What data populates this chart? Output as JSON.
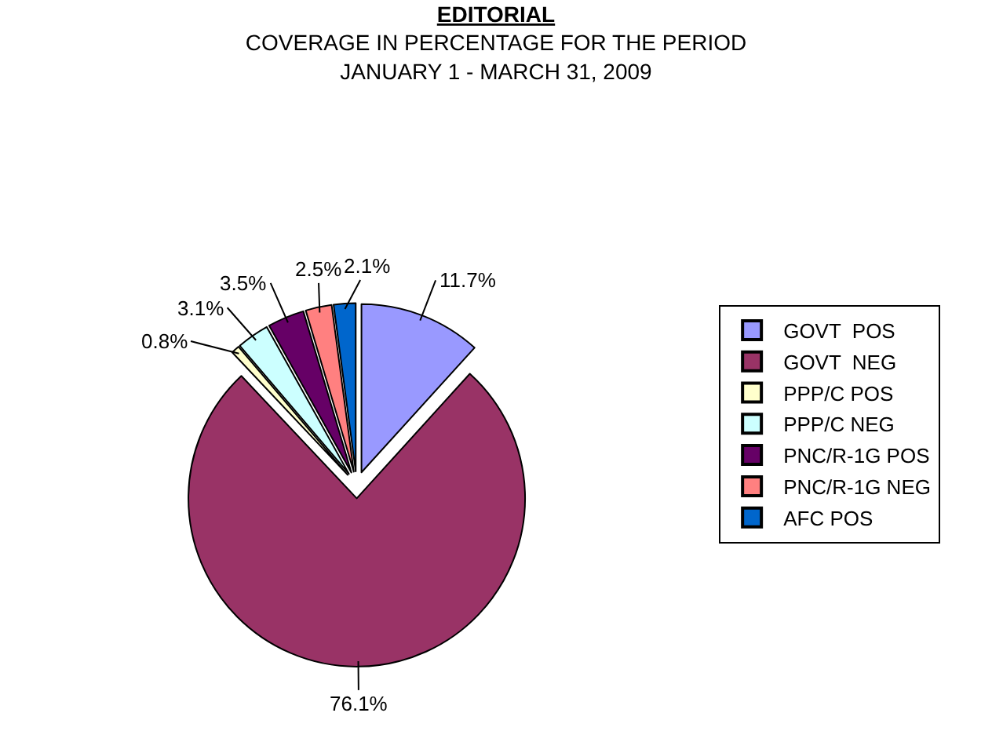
{
  "chart_data": {
    "type": "pie",
    "title": "EDITORIAL",
    "subtitle": "COVERAGE IN PERCENTAGE FOR THE PERIOD\nJANUARY 1 - MARCH 31, 2009",
    "categories": [
      "GOVT  POS",
      "GOVT  NEG",
      "PPP/C POS",
      "PPP/C NEG",
      "PNC/R-1G POS",
      "PNC/R-1G NEG",
      "AFC POS"
    ],
    "values": [
      11.7,
      76.1,
      0.8,
      3.1,
      3.5,
      2.5,
      2.1
    ],
    "value_labels": [
      "11.7%",
      "76.1%",
      "0.8%",
      "3.1%",
      "3.5%",
      "2.5%",
      "2.1%"
    ],
    "colors": [
      "#9999ff",
      "#993366",
      "#ffffcc",
      "#ccffff",
      "#660066",
      "#ff8080",
      "#0066cc"
    ],
    "legend": "right"
  }
}
